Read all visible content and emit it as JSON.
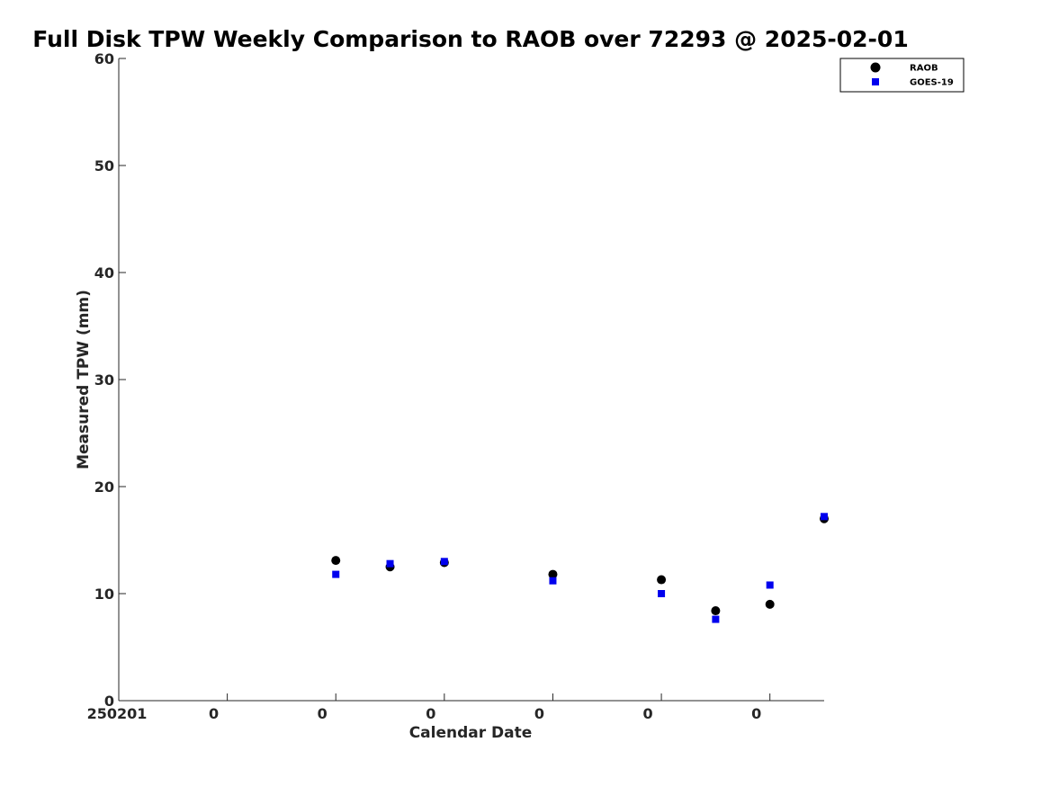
{
  "chart_data": {
    "type": "scatter",
    "title": "Full Disk TPW Weekly Comparison to RAOB over 72293 @ 2025-02-01",
    "xlabel": "Calendar Date",
    "ylabel": "Measured TPW (mm)",
    "xlim": [
      0,
      6.5
    ],
    "ylim": [
      0,
      60
    ],
    "yticks": [
      0,
      10,
      20,
      30,
      40,
      50,
      60
    ],
    "xticks": [
      0,
      1,
      2,
      3,
      4,
      5,
      6
    ],
    "xtick_labels": [
      "250201",
      "0",
      "0",
      "0",
      "0",
      "0",
      "0"
    ],
    "grid": false,
    "legend_position": "top-right",
    "series": [
      {
        "name": "RAOB",
        "color": "#000000",
        "marker": "circle",
        "points": [
          {
            "x": 2.0,
            "y": 13.1
          },
          {
            "x": 2.5,
            "y": 12.5
          },
          {
            "x": 3.0,
            "y": 12.9
          },
          {
            "x": 4.0,
            "y": 11.8
          },
          {
            "x": 5.0,
            "y": 11.3
          },
          {
            "x": 5.5,
            "y": 8.4
          },
          {
            "x": 6.0,
            "y": 9.0
          },
          {
            "x": 6.5,
            "y": 17.0
          }
        ]
      },
      {
        "name": "GOES-19",
        "color": "#0000ee",
        "marker": "square",
        "points": [
          {
            "x": 2.0,
            "y": 11.8
          },
          {
            "x": 2.5,
            "y": 12.8
          },
          {
            "x": 3.0,
            "y": 13.0
          },
          {
            "x": 4.0,
            "y": 11.2
          },
          {
            "x": 5.0,
            "y": 10.0
          },
          {
            "x": 5.5,
            "y": 7.6
          },
          {
            "x": 6.0,
            "y": 10.8
          },
          {
            "x": 6.5,
            "y": 17.2
          }
        ]
      }
    ]
  }
}
